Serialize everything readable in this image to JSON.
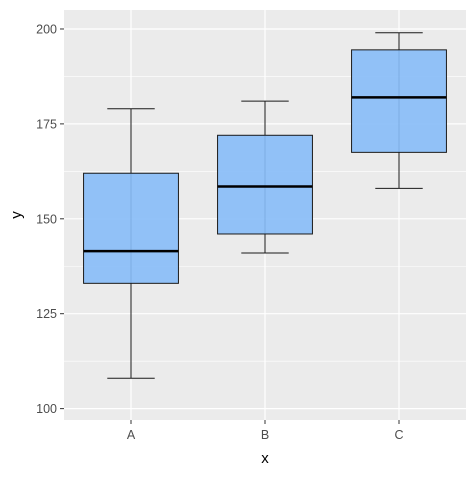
{
  "chart_data": {
    "type": "box",
    "xlabel": "x",
    "ylabel": "y",
    "ylim": [
      97,
      205
    ],
    "yticks": [
      100,
      125,
      150,
      175,
      200
    ],
    "categories": [
      "A",
      "B",
      "C"
    ],
    "boxes": [
      {
        "category": "A",
        "min": 108,
        "q1": 133,
        "median": 141.5,
        "q3": 162,
        "max": 179
      },
      {
        "category": "B",
        "min": 141,
        "q1": 146,
        "median": 158.5,
        "q3": 172,
        "max": 181
      },
      {
        "category": "C",
        "min": 158,
        "q1": 167.5,
        "median": 182,
        "q3": 194.5,
        "max": 199
      }
    ],
    "grid": true,
    "colors": {
      "panel_background": "#ebebeb",
      "grid_major": "#ffffff",
      "box_fill": "#87bdf8",
      "box_stroke": "#1a1a1a",
      "median": "#000000",
      "tick_label": "#4d4d4d",
      "axis_title": "#000000"
    }
  }
}
